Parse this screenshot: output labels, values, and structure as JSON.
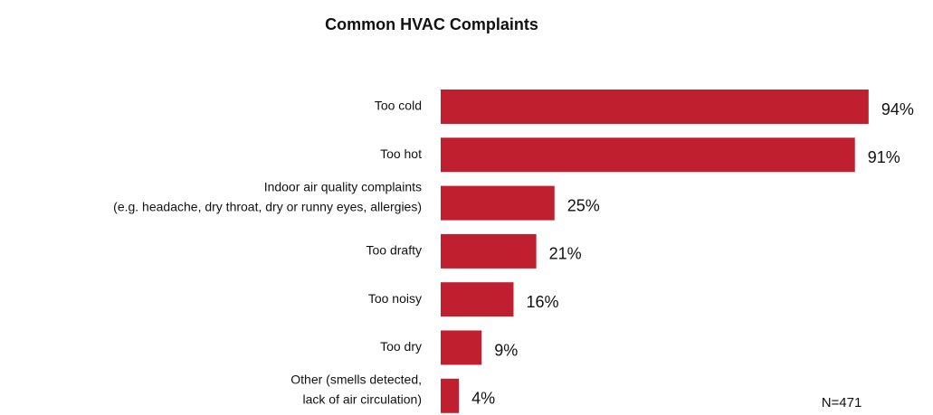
{
  "chart_data": {
    "type": "bar",
    "orientation": "horizontal",
    "title": "Common HVAC Complaints",
    "categories": [
      [
        "Too cold"
      ],
      [
        "Too hot"
      ],
      [
        "Indoor air quality complaints",
        "(e.g. headache, dry throat, dry or runny eyes, allergies)"
      ],
      [
        "Too drafty"
      ],
      [
        "Too noisy"
      ],
      [
        "Too dry"
      ],
      [
        "Other (smells detected,",
        "lack of air circulation)"
      ]
    ],
    "values": [
      94,
      91,
      25,
      21,
      16,
      9,
      4
    ],
    "value_labels": [
      "94%",
      "91%",
      "25%",
      "21%",
      "16%",
      "9%",
      "4%"
    ],
    "color": "#c01f2f",
    "annotation": "N=471"
  }
}
